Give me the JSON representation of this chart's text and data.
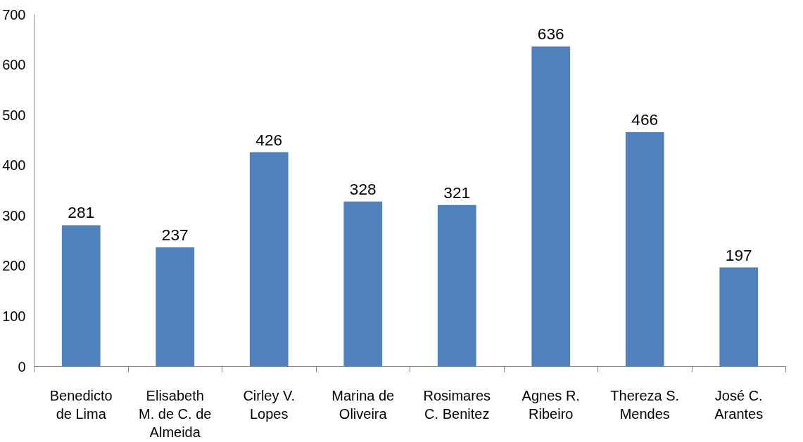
{
  "chart_data": {
    "type": "bar",
    "categories": [
      "Benedicto de Lima",
      "Elisabeth M. de C. de Almeida",
      "Cirley V. Lopes",
      "Marina de Oliveira",
      "Rosimares C. Benitez",
      "Agnes R. Ribeiro",
      "Thereza S. Mendes",
      "José C. Arantes"
    ],
    "values": [
      281,
      237,
      426,
      328,
      321,
      636,
      466,
      197
    ],
    "color": "#4f81bd",
    "ylim": [
      0,
      700
    ],
    "yticks": [
      0,
      100,
      200,
      300,
      400,
      500,
      600,
      700
    ],
    "data_labels": true,
    "grid": false
  }
}
